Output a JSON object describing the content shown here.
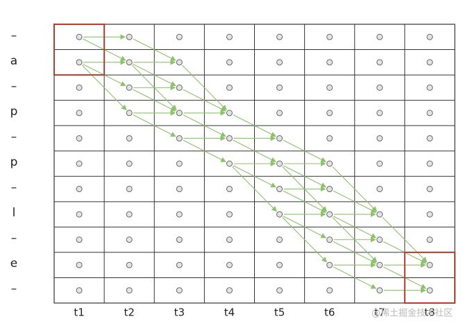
{
  "rows": [
    "–",
    "a",
    "–",
    "p",
    "–",
    "p",
    "–",
    "l",
    "–",
    "e",
    "–"
  ],
  "columns": [
    "t1",
    "t2",
    "t3",
    "t4",
    "t5",
    "t6",
    "t7",
    "t8"
  ],
  "watermark": "@稀土掘金技术社区"
}
